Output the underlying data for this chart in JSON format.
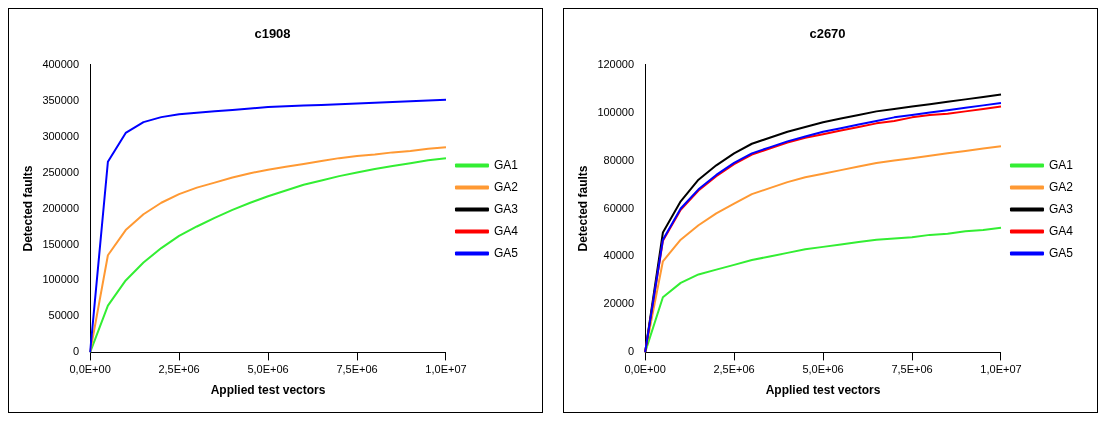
{
  "chart_data": [
    {
      "type": "line",
      "title": "c1908",
      "xlabel": "Applied test vectors",
      "ylabel": "Detected faults",
      "legend": "right",
      "grid": false,
      "marker": "none",
      "line_style": "solid",
      "categories": [
        "0,0E+00",
        null,
        null,
        null,
        null,
        "2,5E+06",
        null,
        null,
        null,
        null,
        "5,0E+06",
        null,
        null,
        null,
        null,
        "7,5E+06",
        null,
        null,
        null,
        null,
        "1,0E+07"
      ],
      "ylim": [
        0,
        400000
      ],
      "yticks": [
        0,
        50000,
        100000,
        150000,
        200000,
        250000,
        300000,
        350000,
        400000
      ],
      "series": [
        {
          "name": "GA1",
          "color": "#33ee33",
          "values": [
            0,
            65000,
            100000,
            125000,
            145000,
            162000,
            175000,
            187000,
            198000,
            208000,
            217000,
            225000,
            233000,
            239000,
            245000,
            250000,
            255000,
            259000,
            263000,
            267000,
            270000
          ]
        },
        {
          "name": "GA2",
          "color": "#ff9933",
          "values": [
            0,
            135000,
            170000,
            192000,
            208000,
            220000,
            229000,
            236000,
            243000,
            249000,
            254000,
            258000,
            262000,
            266000,
            270000,
            273000,
            275000,
            278000,
            280000,
            283000,
            285000
          ]
        },
        {
          "name": "GA3",
          "color": "#000000",
          "values": [
            null,
            null,
            null,
            null,
            null,
            null,
            null,
            null,
            null,
            null,
            null,
            null,
            null,
            null,
            null,
            null,
            null,
            null,
            null,
            null,
            null
          ]
        },
        {
          "name": "GA4",
          "color": "#ff0000",
          "values": [
            null,
            null,
            null,
            null,
            null,
            null,
            null,
            null,
            null,
            null,
            null,
            null,
            null,
            null,
            null,
            null,
            null,
            null,
            null,
            null,
            null
          ]
        },
        {
          "name": "GA5",
          "color": "#0000ff",
          "values": [
            0,
            265000,
            305000,
            320000,
            327000,
            331000,
            333000,
            335000,
            337000,
            339000,
            341000,
            342000,
            343000,
            344000,
            345000,
            346000,
            347000,
            348000,
            349000,
            350000,
            351000
          ]
        }
      ]
    },
    {
      "type": "line",
      "title": "c2670",
      "xlabel": "Applied test vectors",
      "ylabel": "Detected faults",
      "legend": "right",
      "grid": false,
      "marker": "none",
      "line_style": "solid",
      "categories": [
        "0,0E+00",
        null,
        null,
        null,
        null,
        "2,5E+06",
        null,
        null,
        null,
        null,
        "5,0E+06",
        null,
        null,
        null,
        null,
        "7,5E+06",
        null,
        null,
        null,
        null,
        "1,0E+07"
      ],
      "ylim": [
        0,
        120000
      ],
      "yticks": [
        0,
        20000,
        40000,
        60000,
        80000,
        100000,
        120000
      ],
      "series": [
        {
          "name": "GA1",
          "color": "#33ee33",
          "values": [
            0,
            23000,
            29000,
            32500,
            34500,
            36500,
            38500,
            40000,
            41500,
            43000,
            44000,
            45000,
            46000,
            47000,
            47500,
            48000,
            49000,
            49500,
            50500,
            51000,
            52000
          ]
        },
        {
          "name": "GA2",
          "color": "#ff9933",
          "values": [
            0,
            38000,
            47000,
            53000,
            58000,
            62000,
            66000,
            68500,
            71000,
            73000,
            74500,
            76000,
            77500,
            79000,
            80000,
            81000,
            82000,
            83000,
            84000,
            85000,
            86000
          ]
        },
        {
          "name": "GA3",
          "color": "#000000",
          "values": [
            0,
            50000,
            63000,
            72000,
            78000,
            83000,
            87000,
            89500,
            92000,
            94000,
            96000,
            97500,
            99000,
            100500,
            101500,
            102500,
            103500,
            104500,
            105500,
            106500,
            107500
          ]
        },
        {
          "name": "GA4",
          "color": "#ff0000",
          "values": [
            0,
            46500,
            59500,
            67500,
            73500,
            78500,
            82500,
            85000,
            87500,
            89500,
            91000,
            92500,
            94000,
            95500,
            96500,
            98000,
            99000,
            99500,
            100500,
            101500,
            102500
          ]
        },
        {
          "name": "GA5",
          "color": "#0000ff",
          "values": [
            0,
            47000,
            60000,
            68000,
            74000,
            79000,
            83000,
            85500,
            88000,
            90000,
            92000,
            93500,
            95000,
            96500,
            98000,
            99000,
            100000,
            101000,
            102000,
            103000,
            104000
          ]
        }
      ]
    }
  ]
}
